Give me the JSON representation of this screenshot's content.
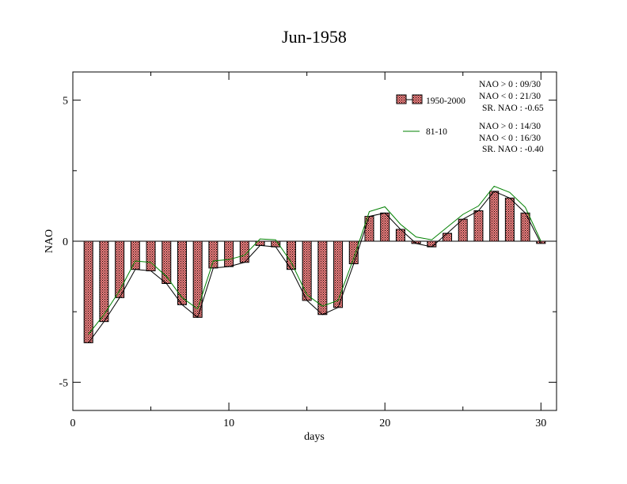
{
  "chart_data": {
    "type": "bar",
    "title": "Jun-1958",
    "xlabel": "days",
    "ylabel": "NAO",
    "xlim": [
      0,
      31
    ],
    "ylim": [
      -6,
      6
    ],
    "xticks": [
      0,
      10,
      20,
      30
    ],
    "xtick_labels": [
      "0",
      "10",
      "20",
      "30"
    ],
    "yticks": [
      -5,
      0,
      5
    ],
    "ytick_labels": [
      "-5",
      "0",
      "5"
    ],
    "grid": false,
    "legend_position": "top-right",
    "x": [
      1,
      2,
      3,
      4,
      5,
      6,
      7,
      8,
      9,
      10,
      11,
      12,
      13,
      14,
      15,
      16,
      17,
      18,
      19,
      20,
      21,
      22,
      23,
      24,
      25,
      26,
      27,
      28,
      29,
      30
    ],
    "series": [
      {
        "name": "1950-2000",
        "kind": "bar",
        "color": "#f08080",
        "values": [
          -3.6,
          -2.85,
          -2.0,
          -1.0,
          -1.05,
          -1.5,
          -2.25,
          -2.7,
          -0.95,
          -0.9,
          -0.75,
          -0.15,
          -0.2,
          -1.0,
          -2.1,
          -2.6,
          -2.35,
          -0.8,
          0.88,
          1.0,
          0.42,
          -0.08,
          -0.2,
          0.28,
          0.78,
          1.08,
          1.77,
          1.53,
          1.0,
          -0.08
        ]
      },
      {
        "name": "",
        "kind": "line",
        "color": "#000000",
        "values": [
          -3.6,
          -2.85,
          -2.0,
          -1.0,
          -1.05,
          -1.5,
          -2.25,
          -2.7,
          -0.95,
          -0.9,
          -0.75,
          -0.15,
          -0.2,
          -1.0,
          -2.1,
          -2.6,
          -2.35,
          -0.8,
          0.88,
          1.0,
          0.42,
          -0.08,
          -0.2,
          0.28,
          0.78,
          1.08,
          1.77,
          1.53,
          1.0,
          -0.08
        ]
      },
      {
        "name": "81-10",
        "kind": "line",
        "color": "#008000",
        "values": [
          -3.3,
          -2.6,
          -1.75,
          -0.7,
          -0.75,
          -1.25,
          -2.0,
          -2.4,
          -0.7,
          -0.65,
          -0.5,
          0.08,
          0.05,
          -0.75,
          -1.9,
          -2.3,
          -2.1,
          -0.6,
          1.05,
          1.22,
          0.6,
          0.15,
          0.05,
          0.5,
          0.95,
          1.25,
          1.95,
          1.73,
          1.2,
          0.0
        ]
      }
    ],
    "annotations": [
      [
        "NAO > 0 : 09/30",
        "NAO < 0 : 21/30",
        "SR. NAO : -0.65"
      ],
      [
        "NAO > 0 : 14/30",
        "NAO < 0 : 16/30",
        "SR. NAO : -0.40"
      ]
    ]
  }
}
